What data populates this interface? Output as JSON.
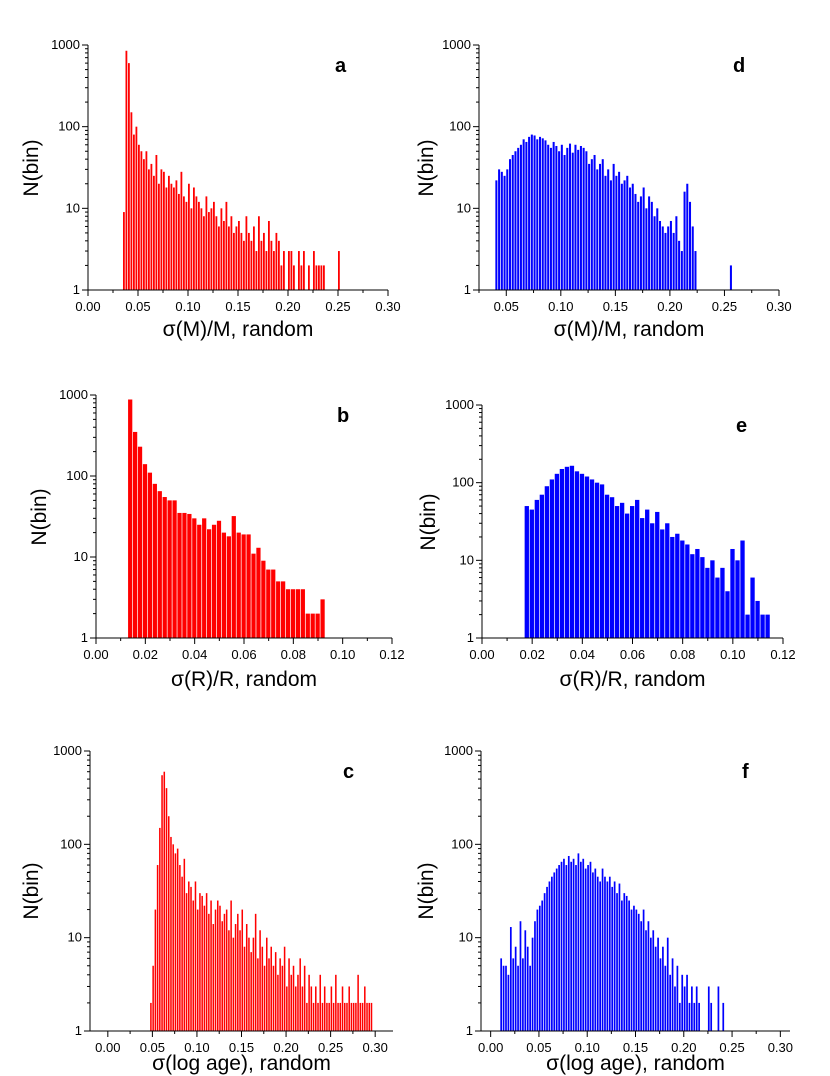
{
  "chart_data": [
    {
      "panel": "a",
      "type": "bar",
      "color": "#ff0000",
      "scale": "log",
      "xlabel": "σ(M)/M, random",
      "ylabel": "N(bin)",
      "xlim": [
        0.0,
        0.3
      ],
      "ylim": [
        1,
        1000
      ],
      "xticks": [
        "0.00",
        "0.05",
        "0.10",
        "0.15",
        "0.20",
        "0.25",
        "0.30"
      ],
      "yticks": [
        "1",
        "10",
        "100",
        "1000"
      ],
      "bin_width": 0.0025,
      "x": [
        0.035,
        0.0375,
        0.04,
        0.0425,
        0.045,
        0.0475,
        0.05,
        0.0525,
        0.055,
        0.0575,
        0.06,
        0.0625,
        0.065,
        0.0675,
        0.07,
        0.0725,
        0.075,
        0.0775,
        0.08,
        0.0825,
        0.085,
        0.0875,
        0.09,
        0.0925,
        0.095,
        0.0975,
        0.1,
        0.1025,
        0.105,
        0.1075,
        0.11,
        0.1125,
        0.115,
        0.1175,
        0.12,
        0.1225,
        0.125,
        0.1275,
        0.13,
        0.1325,
        0.135,
        0.1375,
        0.14,
        0.1425,
        0.145,
        0.1475,
        0.15,
        0.1525,
        0.155,
        0.1575,
        0.16,
        0.1625,
        0.165,
        0.1675,
        0.17,
        0.1725,
        0.175,
        0.1775,
        0.18,
        0.1825,
        0.185,
        0.1875,
        0.19,
        0.1925,
        0.195,
        0.2,
        0.2025,
        0.205,
        0.21,
        0.2125,
        0.215,
        0.22,
        0.225,
        0.2275,
        0.23,
        0.2325,
        0.235,
        0.25
      ],
      "values": [
        9,
        850,
        600,
        150,
        80,
        100,
        60,
        50,
        40,
        50,
        30,
        35,
        25,
        45,
        20,
        30,
        28,
        18,
        25,
        20,
        18,
        22,
        15,
        28,
        14,
        12,
        20,
        10,
        18,
        14,
        12,
        10,
        8,
        14,
        9,
        10,
        12,
        8,
        6,
        10,
        7,
        12,
        6,
        8,
        5,
        6,
        7,
        5,
        4,
        8,
        5,
        4,
        6,
        3,
        8,
        4,
        5,
        3,
        7,
        4,
        3,
        5,
        4,
        2,
        3,
        3,
        3,
        2,
        3,
        2,
        3,
        2,
        3,
        2,
        2,
        2,
        2,
        3
      ]
    },
    {
      "panel": "d",
      "type": "bar",
      "color": "#0000ff",
      "scale": "log",
      "xlabel": "σ(M)/M, random",
      "ylabel": "N(bin)",
      "xlim": [
        0.025,
        0.3
      ],
      "ylim": [
        1,
        1000
      ],
      "xticks": [
        "0.05",
        "0.10",
        "0.15",
        "0.20",
        "0.25",
        "0.30"
      ],
      "yticks": [
        "1",
        "10",
        "100",
        "1000"
      ],
      "bin_width": 0.0025,
      "x": [
        0.04,
        0.0425,
        0.045,
        0.0475,
        0.05,
        0.0525,
        0.055,
        0.0575,
        0.06,
        0.0625,
        0.065,
        0.0675,
        0.07,
        0.0725,
        0.075,
        0.0775,
        0.08,
        0.0825,
        0.085,
        0.0875,
        0.09,
        0.0925,
        0.095,
        0.0975,
        0.1,
        0.1025,
        0.105,
        0.1075,
        0.11,
        0.1125,
        0.115,
        0.1175,
        0.12,
        0.1225,
        0.125,
        0.1275,
        0.13,
        0.1325,
        0.135,
        0.1375,
        0.14,
        0.1425,
        0.145,
        0.1475,
        0.15,
        0.1525,
        0.155,
        0.1575,
        0.16,
        0.1625,
        0.165,
        0.1675,
        0.17,
        0.1725,
        0.175,
        0.1775,
        0.18,
        0.1825,
        0.185,
        0.1875,
        0.19,
        0.1925,
        0.195,
        0.1975,
        0.2,
        0.2025,
        0.205,
        0.2075,
        0.21,
        0.2125,
        0.215,
        0.2175,
        0.22,
        0.2225,
        0.255
      ],
      "values": [
        22,
        30,
        28,
        25,
        30,
        40,
        45,
        50,
        55,
        60,
        70,
        65,
        75,
        80,
        78,
        70,
        75,
        72,
        68,
        60,
        55,
        65,
        58,
        50,
        60,
        45,
        55,
        62,
        48,
        60,
        52,
        58,
        55,
        50,
        35,
        40,
        45,
        30,
        35,
        40,
        25,
        30,
        22,
        35,
        25,
        28,
        20,
        22,
        25,
        18,
        20,
        15,
        12,
        14,
        18,
        10,
        14,
        12,
        8,
        10,
        7,
        6,
        5,
        6,
        7,
        5,
        8,
        4,
        3,
        16,
        20,
        12,
        6,
        3,
        2
      ]
    },
    {
      "panel": "b",
      "type": "bar",
      "color": "#ff0000",
      "scale": "log",
      "xlabel": "σ(R)/R, random",
      "ylabel": "N(bin)",
      "xlim": [
        0.0,
        0.12
      ],
      "ylim": [
        1,
        1000
      ],
      "xticks": [
        "0.00",
        "0.02",
        "0.04",
        "0.06",
        "0.08",
        "0.10",
        "0.12"
      ],
      "yticks": [
        "1",
        "10",
        "100",
        "1000"
      ],
      "bin_width": 0.002,
      "x": [
        0.013,
        0.015,
        0.017,
        0.019,
        0.021,
        0.023,
        0.025,
        0.027,
        0.029,
        0.031,
        0.033,
        0.035,
        0.037,
        0.039,
        0.041,
        0.043,
        0.045,
        0.047,
        0.049,
        0.051,
        0.053,
        0.055,
        0.057,
        0.059,
        0.061,
        0.063,
        0.065,
        0.067,
        0.069,
        0.071,
        0.073,
        0.075,
        0.077,
        0.079,
        0.081,
        0.083,
        0.085,
        0.087,
        0.089,
        0.091
      ],
      "values": [
        880,
        350,
        230,
        140,
        110,
        80,
        65,
        55,
        50,
        50,
        35,
        35,
        34,
        30,
        25,
        30,
        22,
        25,
        28,
        20,
        18,
        32,
        20,
        19,
        19,
        11,
        13,
        9,
        7,
        7,
        5,
        5,
        4,
        4,
        4,
        4,
        2,
        2,
        2,
        3
      ]
    },
    {
      "panel": "e",
      "type": "bar",
      "color": "#0000ff",
      "scale": "log",
      "xlabel": "σ(R)/R, random",
      "ylabel": "N(bin)",
      "xlim": [
        0.0,
        0.12
      ],
      "ylim": [
        1,
        1000
      ],
      "xticks": [
        "0.00",
        "0.02",
        "0.04",
        "0.06",
        "0.08",
        "0.10",
        "0.12"
      ],
      "yticks": [
        "1",
        "10",
        "100",
        "1000"
      ],
      "bin_width": 0.002,
      "x": [
        0.017,
        0.019,
        0.021,
        0.023,
        0.025,
        0.027,
        0.029,
        0.031,
        0.033,
        0.035,
        0.037,
        0.039,
        0.041,
        0.043,
        0.045,
        0.047,
        0.049,
        0.051,
        0.053,
        0.055,
        0.057,
        0.059,
        0.061,
        0.063,
        0.065,
        0.067,
        0.069,
        0.071,
        0.073,
        0.075,
        0.077,
        0.079,
        0.081,
        0.083,
        0.085,
        0.087,
        0.089,
        0.091,
        0.093,
        0.095,
        0.097,
        0.099,
        0.101,
        0.103,
        0.105,
        0.107,
        0.109,
        0.111,
        0.113
      ],
      "values": [
        50,
        45,
        60,
        70,
        90,
        110,
        130,
        150,
        160,
        165,
        140,
        130,
        120,
        110,
        100,
        95,
        70,
        65,
        50,
        55,
        40,
        50,
        60,
        35,
        45,
        30,
        42,
        25,
        30,
        20,
        22,
        18,
        16,
        12,
        14,
        11,
        8,
        10,
        6,
        8,
        4,
        14,
        10,
        18,
        2,
        6,
        3,
        2,
        2
      ]
    },
    {
      "panel": "c",
      "type": "bar",
      "color": "#ff0000",
      "scale": "log",
      "xlabel": "σ(log age), random",
      "ylabel": "N(bin)",
      "xlim": [
        -0.02,
        0.32
      ],
      "ylim": [
        1,
        1000
      ],
      "xticks": [
        "0.00",
        "0.05",
        "0.10",
        "0.15",
        "0.20",
        "0.25",
        "0.30"
      ],
      "yticks": [
        "1",
        "10",
        "100",
        "1000"
      ],
      "bin_width": 0.0025,
      "x": [
        0.0475,
        0.05,
        0.0525,
        0.055,
        0.0575,
        0.06,
        0.0625,
        0.065,
        0.0675,
        0.07,
        0.0725,
        0.075,
        0.0775,
        0.08,
        0.0825,
        0.085,
        0.0875,
        0.09,
        0.0925,
        0.095,
        0.0975,
        0.1,
        0.1025,
        0.105,
        0.1075,
        0.11,
        0.1125,
        0.115,
        0.1175,
        0.12,
        0.1225,
        0.125,
        0.1275,
        0.13,
        0.1325,
        0.135,
        0.1375,
        0.14,
        0.1425,
        0.145,
        0.1475,
        0.15,
        0.1525,
        0.155,
        0.1575,
        0.16,
        0.1625,
        0.165,
        0.1675,
        0.17,
        0.1725,
        0.175,
        0.1775,
        0.18,
        0.1825,
        0.185,
        0.1875,
        0.19,
        0.1925,
        0.195,
        0.1975,
        0.2,
        0.2025,
        0.205,
        0.2075,
        0.21,
        0.2125,
        0.215,
        0.2175,
        0.22,
        0.2225,
        0.225,
        0.2275,
        0.23,
        0.2325,
        0.235,
        0.2375,
        0.24,
        0.2425,
        0.245,
        0.2475,
        0.25,
        0.2525,
        0.255,
        0.2575,
        0.26,
        0.2625,
        0.265,
        0.2675,
        0.27,
        0.2725,
        0.275,
        0.2775,
        0.28,
        0.2825,
        0.285,
        0.2875,
        0.29,
        0.2925,
        0.295
      ],
      "values": [
        2,
        5,
        20,
        60,
        150,
        550,
        600,
        400,
        200,
        120,
        100,
        80,
        90,
        60,
        45,
        70,
        30,
        40,
        35,
        25,
        40,
        20,
        30,
        28,
        22,
        30,
        18,
        25,
        14,
        20,
        25,
        22,
        15,
        18,
        20,
        12,
        25,
        10,
        14,
        18,
        12,
        20,
        8,
        14,
        10,
        7,
        10,
        18,
        6,
        12,
        8,
        5,
        10,
        6,
        8,
        5,
        7,
        4,
        6,
        5,
        8,
        3,
        6,
        4,
        5,
        3,
        4,
        6,
        3,
        5,
        2,
        4,
        3,
        2,
        3,
        2,
        4,
        2,
        3,
        2,
        2,
        3,
        2,
        4,
        2,
        2,
        3,
        2,
        2,
        3,
        2,
        2,
        2,
        4,
        2,
        2,
        3,
        2,
        2,
        2
      ]
    },
    {
      "panel": "f",
      "type": "bar",
      "color": "#0000ff",
      "scale": "log",
      "xlabel": "σ(log age), random",
      "ylabel": "N(bin)",
      "xlim": [
        -0.01,
        0.31
      ],
      "ylim": [
        1,
        1000
      ],
      "xticks": [
        "0.00",
        "0.05",
        "0.10",
        "0.15",
        "0.20",
        "0.25",
        "0.30"
      ],
      "yticks": [
        "1",
        "10",
        "100",
        "1000"
      ],
      "bin_width": 0.0025,
      "x": [
        0.01,
        0.0125,
        0.015,
        0.0175,
        0.02,
        0.0225,
        0.025,
        0.0275,
        0.03,
        0.0325,
        0.035,
        0.0375,
        0.04,
        0.0425,
        0.045,
        0.0475,
        0.05,
        0.0525,
        0.055,
        0.0575,
        0.06,
        0.0625,
        0.065,
        0.0675,
        0.07,
        0.0725,
        0.075,
        0.0775,
        0.08,
        0.0825,
        0.085,
        0.0875,
        0.09,
        0.0925,
        0.095,
        0.0975,
        0.1,
        0.1025,
        0.105,
        0.1075,
        0.11,
        0.1125,
        0.115,
        0.1175,
        0.12,
        0.1225,
        0.125,
        0.1275,
        0.13,
        0.1325,
        0.135,
        0.1375,
        0.14,
        0.1425,
        0.145,
        0.1475,
        0.15,
        0.1525,
        0.155,
        0.1575,
        0.16,
        0.1625,
        0.165,
        0.1675,
        0.17,
        0.1725,
        0.175,
        0.1775,
        0.18,
        0.1825,
        0.185,
        0.1875,
        0.19,
        0.1925,
        0.195,
        0.1975,
        0.2,
        0.2025,
        0.205,
        0.2075,
        0.21,
        0.2125,
        0.215,
        0.225,
        0.2275,
        0.235,
        0.24
      ],
      "values": [
        6,
        5,
        5,
        4,
        13,
        6,
        8,
        5,
        15,
        6,
        12,
        8,
        5,
        10,
        15,
        20,
        22,
        25,
        30,
        35,
        40,
        45,
        50,
        55,
        60,
        65,
        70,
        60,
        75,
        65,
        70,
        60,
        80,
        65,
        70,
        55,
        60,
        65,
        50,
        55,
        45,
        40,
        55,
        45,
        40,
        45,
        35,
        40,
        30,
        38,
        25,
        30,
        28,
        25,
        20,
        22,
        20,
        18,
        15,
        20,
        12,
        15,
        10,
        12,
        8,
        10,
        6,
        8,
        5,
        10,
        4,
        6,
        3,
        5,
        2,
        4,
        3,
        4,
        2,
        3,
        2,
        3,
        2,
        3,
        2,
        3,
        2
      ]
    }
  ]
}
